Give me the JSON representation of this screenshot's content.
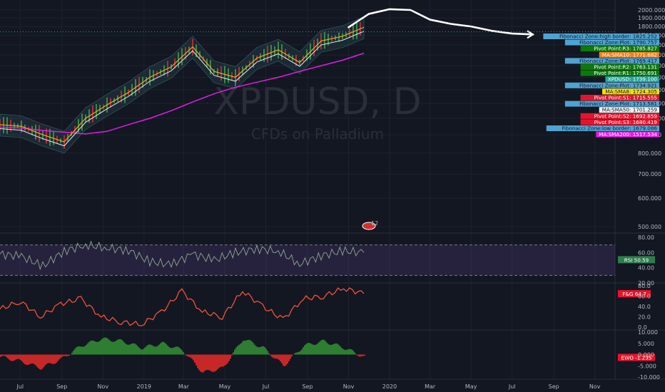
{
  "watermark": {
    "symbol": "XPDUSD, D",
    "subtitle": "CFDs on Palladium"
  },
  "colors": {
    "background": "#131722",
    "grid": "#1e222d",
    "price_line": "#e8e8e8",
    "sma200": "#e01ee0",
    "rsi": "#8fa88f",
    "rsi_band": "#7e57c2",
    "fg": "#f0513b",
    "ewo_pos": "#2e7d32",
    "ewo_neg": "#c62828"
  },
  "x_axis": {
    "labels": [
      "Jul",
      "Sep",
      "Nov",
      "2019",
      "Mar",
      "May",
      "Jul",
      "Sep",
      "Nov",
      "2020",
      "Mar",
      "May",
      "Jul",
      "Sep",
      "Nov"
    ]
  },
  "event_marker": {
    "label": "12"
  },
  "chart_data": [
    {
      "type": "line",
      "title": "XPDUSD, D",
      "subtitle": "CFDs on Palladium",
      "ylabel": "",
      "y_scale": "log",
      "ylim": [
        500,
        2000
      ],
      "y_ticks": [
        "2000.000",
        "1900.000",
        "1800.000",
        "1700.000",
        "1600.000",
        "1500.000",
        "1400.000",
        "1300.000",
        "1200.000",
        "1100.000",
        "1000.000",
        "900.000",
        "800.000",
        "700.000",
        "600.000",
        "500.000"
      ],
      "x": [
        "2018-06",
        "2018-07",
        "2018-08",
        "2018-09",
        "2018-10",
        "2018-11",
        "2018-12",
        "2019-01",
        "2019-02",
        "2019-03",
        "2019-04",
        "2019-05",
        "2019-06",
        "2019-07",
        "2019-08",
        "2019-09",
        "2019-10",
        "2019-11"
      ],
      "series": [
        {
          "values": [
            960,
            950,
            900,
            860,
            1000,
            1090,
            1180,
            1300,
            1390,
            1580,
            1350,
            1300,
            1470,
            1550,
            1430,
            1640,
            1690,
            1790
          ]
        },
        {
          "name": "MA:SMA200",
          "values": [
            945,
            940,
            925,
            915,
            905,
            920,
            960,
            1000,
            1050,
            1110,
            1170,
            1220,
            1260,
            1300,
            1350,
            1400,
            1450,
            1517
          ]
        }
      ],
      "projection": {
        "x": [
          "2019-11",
          "2019-12",
          "2020-01",
          "2020-02",
          "2020-03",
          "2020-04",
          "2020-05",
          "2020-06",
          "2020-07",
          "2020-08"
        ],
        "values": [
          1790,
          1950,
          2010,
          2000,
          1880,
          1830,
          1800,
          1750,
          1720,
          1710
        ]
      },
      "price_tags": [
        {
          "label": "Fibonacci Zone:high border",
          "value": "1825.252",
          "color": "#4fa3d1",
          "text": "#131722"
        },
        {
          "label": "Fibonacci Zone:Plot",
          "value": "1790.757",
          "color": "#4fa3d1",
          "text": "#131722"
        },
        {
          "label": "Pivot Point:R3",
          "value": "1785.827",
          "color": "#0b7a0b",
          "text": "#ffffff"
        },
        {
          "label": "MA:SMA10",
          "value": "1771.682",
          "color": "#ef7f1a",
          "text": "#ffffff"
        },
        {
          "label": "Fibonacci Zone:Plot",
          "value": "1769.417",
          "color": "#4fa3d1",
          "text": "#131722"
        },
        {
          "label": "Pivot Point:R2",
          "value": "1763.131",
          "color": "#0b7a0b",
          "text": "#ffffff"
        },
        {
          "label": "Pivot Point:R1",
          "value": "1750.691",
          "color": "#0b7a0b",
          "text": "#ffffff"
        },
        {
          "label": "XPDUSD",
          "value": "1739.100",
          "color": "#26a69a",
          "text": "#ffffff"
        },
        {
          "label": "Fibonacci Zone:Plot",
          "value": "1734.921",
          "color": "#4fa3d1",
          "text": "#131722"
        },
        {
          "label": "MA:SMA8",
          "value": "1724.305",
          "color": "#f5e10c",
          "text": "#131722"
        },
        {
          "label": "Pivot Point:S1",
          "value": "1715.555",
          "color": "#e5142e",
          "text": "#ffffff"
        },
        {
          "label": "Fibonacci Zone:Plot",
          "value": "1713.581",
          "color": "#4fa3d1",
          "text": "#131722"
        },
        {
          "label": "MA:SMA50",
          "value": "1701.259",
          "color": "#f0f0f0",
          "text": "#131722"
        },
        {
          "label": "Pivot Point:S2",
          "value": "1692.859",
          "color": "#e5142e",
          "text": "#ffffff"
        },
        {
          "label": "Pivot Point:S3",
          "value": "1680.419",
          "color": "#e5142e",
          "text": "#ffffff"
        },
        {
          "label": "Fibonacci Zone:low border",
          "value": "1679.086",
          "color": "#4fa3d1",
          "text": "#131722"
        },
        {
          "label": "MA:SMA200",
          "value": "1517.534",
          "color": "#e01ee0",
          "text": "#ffffff"
        }
      ]
    },
    {
      "type": "line",
      "name": "RSI",
      "ylim": [
        20,
        80
      ],
      "y_ticks": [
        "80.00",
        "60.00",
        "40.00",
        "20.00"
      ],
      "bands": [
        30,
        70
      ],
      "values": [
        58,
        55,
        42,
        62,
        70,
        66,
        63,
        48,
        44,
        58,
        50,
        60,
        65,
        62,
        45,
        56,
        62,
        60
      ],
      "current": {
        "label": "RSI",
        "value": "50.59",
        "color": "#2e7d4f"
      }
    },
    {
      "type": "line",
      "name": "F&G",
      "ylim": [
        0,
        80
      ],
      "y_ticks": [
        "80.0",
        "60.0",
        "40.0",
        "20.0",
        "0.0"
      ],
      "values": [
        35,
        50,
        20,
        45,
        55,
        20,
        10,
        5,
        30,
        70,
        30,
        20,
        70,
        40,
        15,
        55,
        60,
        75,
        65
      ],
      "current": {
        "label": "F&G",
        "value": "64.7",
        "color": "#e5142e"
      }
    },
    {
      "type": "bar",
      "name": "EWO",
      "ylim": [
        -10,
        10
      ],
      "y_ticks": [
        "10.000",
        "5.000",
        "0.000",
        "-5.000",
        "-10.000"
      ],
      "values": [
        -1,
        -3,
        -6,
        -2,
        4,
        7,
        6,
        3,
        5,
        2,
        -8,
        -6,
        7,
        3,
        -5,
        4,
        6,
        3,
        -1.2
      ],
      "current": {
        "label": "EWO",
        "value": "-1.235",
        "color": "#e5142e"
      }
    }
  ]
}
